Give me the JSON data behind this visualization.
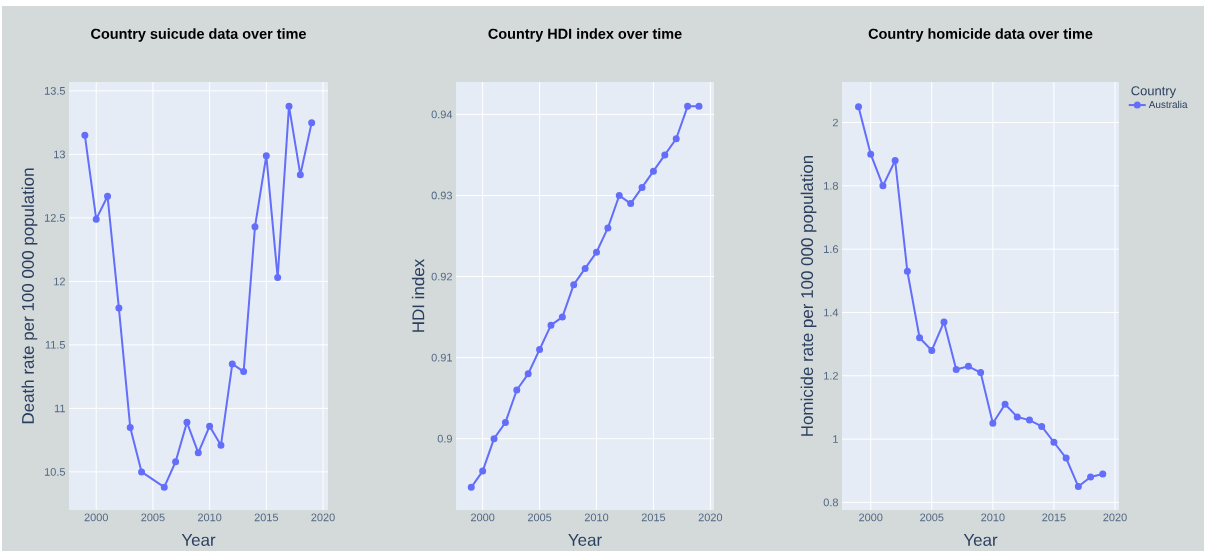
{
  "chart_data": [
    {
      "type": "line",
      "title": "Country suicude data over time",
      "xlabel": "Year",
      "ylabel": "Death rate per 100 000 population",
      "x": [
        1999,
        2000,
        2001,
        2002,
        2003,
        2004,
        2006,
        2007,
        2008,
        2009,
        2010,
        2011,
        2012,
        2013,
        2014,
        2015,
        2016,
        2017,
        2018,
        2019
      ],
      "series": [
        {
          "color": "#636efa",
          "values": [
            13.15,
            12.49,
            12.67,
            11.79,
            10.85,
            10.5,
            10.38,
            10.58,
            10.89,
            10.65,
            10.86,
            10.71,
            11.35,
            11.29,
            12.43,
            12.99,
            12.03,
            13.38,
            12.84,
            13.25
          ]
        }
      ],
      "xlim": [
        1997.6,
        2020.44
      ],
      "ylim": [
        10.2,
        13.57
      ],
      "xticks": [
        2000,
        2005,
        2010,
        2015,
        2020
      ],
      "yticks": [
        10.5,
        11,
        11.5,
        12,
        12.5,
        13,
        13.5
      ],
      "grid": true,
      "marker": "circle",
      "line_style": "solid"
    },
    {
      "type": "line",
      "title": "Country HDI index over time",
      "xlabel": "Year",
      "ylabel": "HDI index",
      "x": [
        1999,
        2000,
        2001,
        2002,
        2003,
        2004,
        2005,
        2006,
        2007,
        2008,
        2009,
        2010,
        2011,
        2012,
        2013,
        2014,
        2015,
        2016,
        2017,
        2018,
        2019
      ],
      "series": [
        {
          "color": "#636efa",
          "values": [
            0.894,
            0.896,
            0.9,
            0.902,
            0.906,
            0.908,
            0.911,
            0.914,
            0.915,
            0.919,
            0.921,
            0.923,
            0.926,
            0.93,
            0.929,
            0.931,
            0.933,
            0.935,
            0.937,
            0.941,
            0.941
          ]
        }
      ],
      "xlim": [
        1997.66,
        2020.32
      ],
      "ylim": [
        0.8912,
        0.944
      ],
      "xticks": [
        2000,
        2005,
        2010,
        2015,
        2020
      ],
      "yticks": [
        0.9,
        0.91,
        0.92,
        0.93,
        0.94
      ],
      "grid": true,
      "marker": "circle",
      "line_style": "solid"
    },
    {
      "type": "line",
      "title": "Country homicide data over time",
      "xlabel": "Year",
      "ylabel": "Homicide rate per 100 000 population",
      "legend_title": "Country",
      "x": [
        1999,
        2000,
        2001,
        2002,
        2003,
        2004,
        2005,
        2006,
        2007,
        2008,
        2009,
        2010,
        2011,
        2012,
        2013,
        2014,
        2015,
        2016,
        2017,
        2018,
        2019
      ],
      "series": [
        {
          "name": "Australia",
          "color": "#636efa",
          "values": [
            2.05,
            1.9,
            1.8,
            1.88,
            1.53,
            1.32,
            1.28,
            1.37,
            1.22,
            1.23,
            1.21,
            1.05,
            1.11,
            1.07,
            1.06,
            1.04,
            0.99,
            0.94,
            0.85,
            0.88,
            0.89
          ]
        }
      ],
      "xlim": [
        1997.65,
        2020.33
      ],
      "ylim": [
        0.776,
        2.128
      ],
      "xticks": [
        2000,
        2005,
        2010,
        2015,
        2020
      ],
      "yticks": [
        0.8,
        1,
        1.2,
        1.4,
        1.6,
        1.8,
        2
      ],
      "grid": true,
      "marker": "circle",
      "line_style": "solid",
      "legend": "top right"
    }
  ]
}
